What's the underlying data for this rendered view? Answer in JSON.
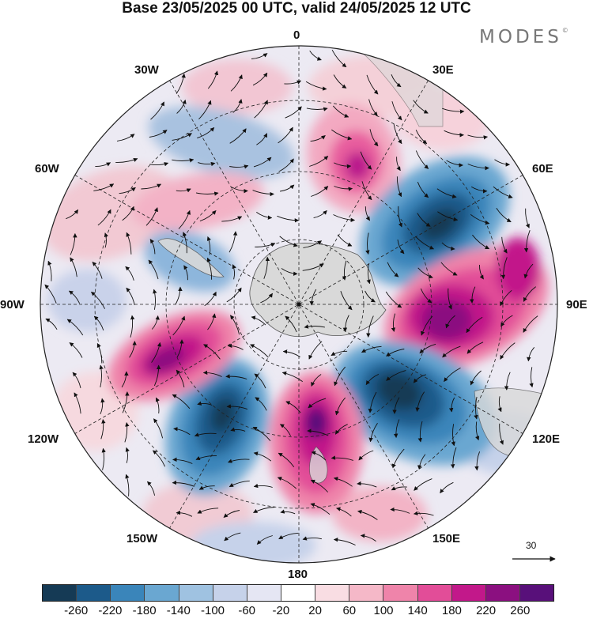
{
  "title": "Base 23/05/2025 00 UTC, valid 24/05/2025 12 UTC",
  "brand": "MODES",
  "brand_mark": "©",
  "map": {
    "projection": "south-polar-stereographic",
    "longitude_labels": [
      "0",
      "30E",
      "60E",
      "90E",
      "120E",
      "150E",
      "180",
      "150W",
      "120W",
      "90W",
      "60W",
      "30W"
    ],
    "land_color": "#d9d9d9",
    "graticule": "dashed"
  },
  "wind_reference": {
    "value": "30"
  },
  "colorbar": {
    "colors": [
      "#153a55",
      "#1c5a8a",
      "#3a85ba",
      "#6aa7d1",
      "#9fc2e1",
      "#c6d2ea",
      "#e5e6f3",
      "#ffffff",
      "#f9dde3",
      "#f5b8c8",
      "#ef84aa",
      "#e24d98",
      "#c2188a",
      "#8b1080",
      "#58107a"
    ],
    "ticks": [
      "-260",
      "-220",
      "-180",
      "-140",
      "-100",
      "-60",
      "-20",
      "20",
      "60",
      "100",
      "140",
      "180",
      "220",
      "260"
    ]
  }
}
